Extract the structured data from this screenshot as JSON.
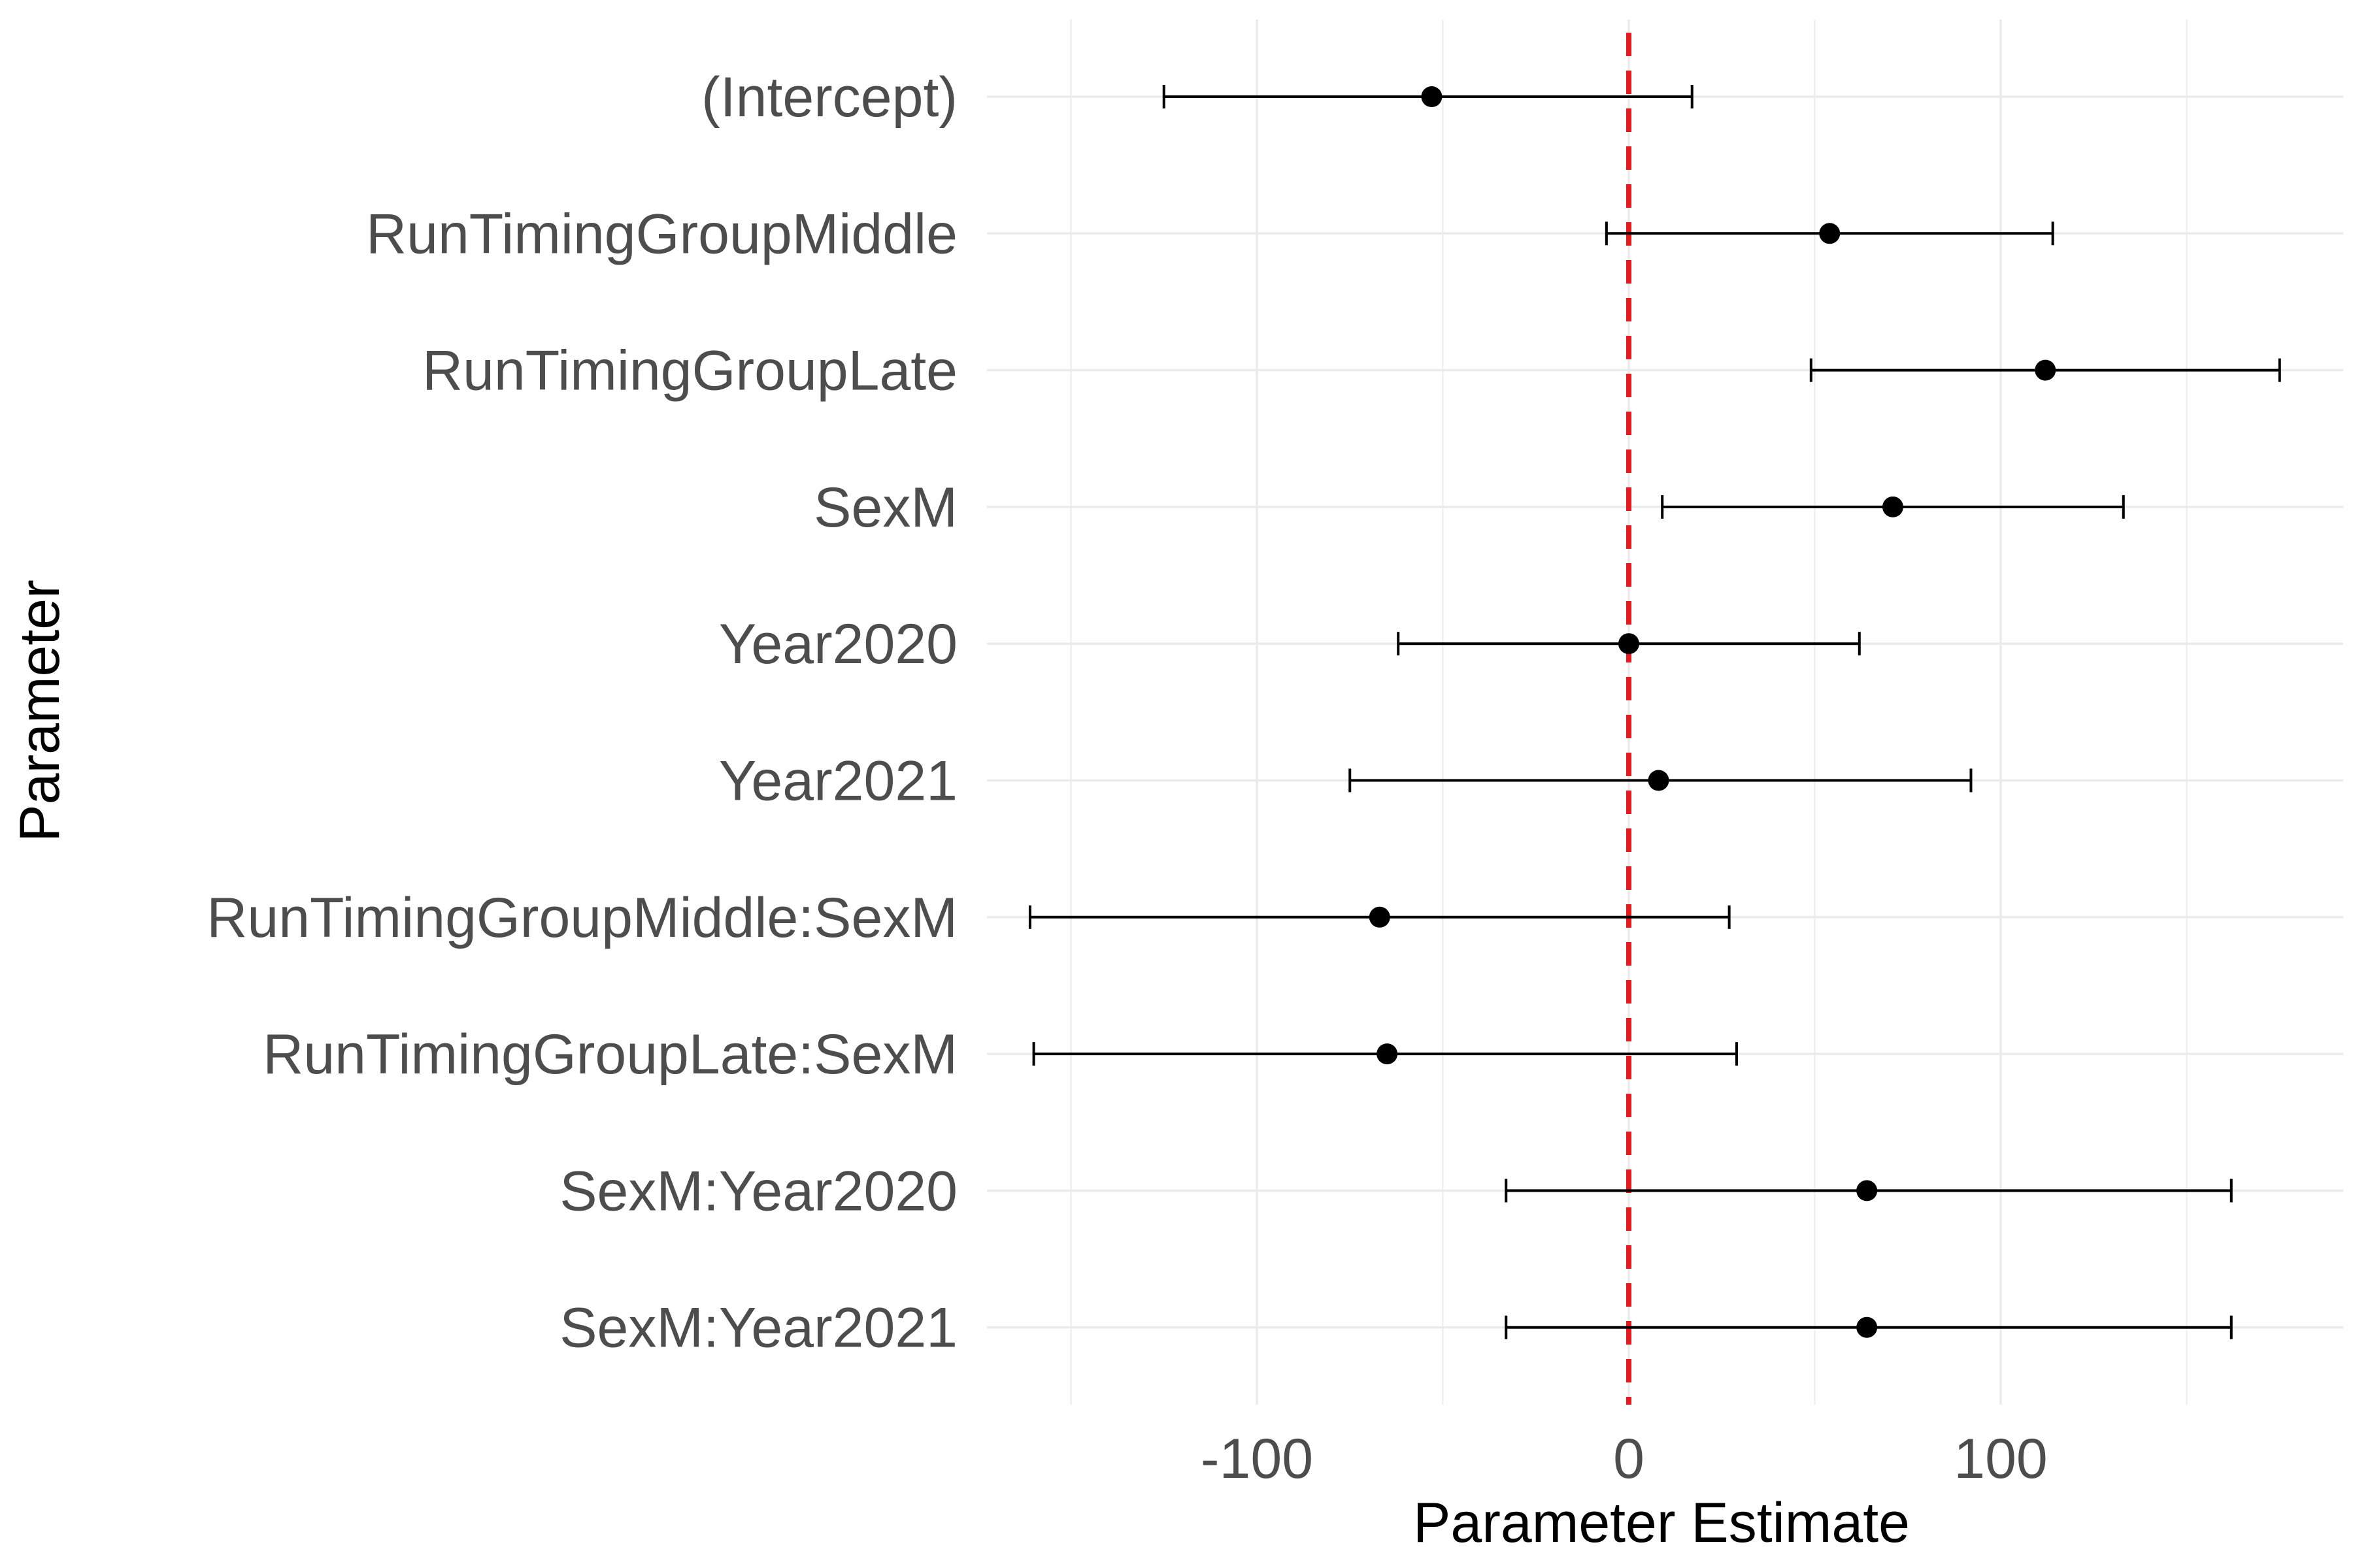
{
  "chart_data": {
    "type": "scatter",
    "subtype": "coefficient-plot-with-error-bars",
    "xlabel": "Parameter Estimate",
    "ylabel": "Parameter",
    "xlim": [
      -170,
      178
    ],
    "x_ticks": [
      -100,
      0,
      100
    ],
    "x_tick_labels": [
      "-100",
      "0",
      "100"
    ],
    "reference_line": {
      "x": 0,
      "color": "#e41a1c",
      "style": "dashed"
    },
    "grid": true,
    "categories": [
      "(Intercept)",
      "RunTimingGroupMiddle",
      "RunTimingGroupLate",
      "SexM",
      "Year2020",
      "Year2021",
      "RunTimingGroupMiddle:SexM",
      "RunTimingGroupLate:SexM",
      "SexM:Year2020",
      "SexM:Year2021"
    ],
    "estimates": [
      -53,
      54,
      112,
      71,
      0,
      8,
      -67,
      -65,
      64,
      64
    ],
    "lower": [
      -125,
      -6,
      49,
      9,
      -62,
      -75,
      -161,
      -160,
      -33,
      -33
    ],
    "upper": [
      17,
      114,
      175,
      133,
      62,
      92,
      27,
      29,
      162,
      162
    ]
  },
  "colors": {
    "point": "#000000",
    "errorbar": "#000000",
    "reference": "#e41a1c",
    "grid": "#ebebeb",
    "tick_text": "#4d4d4d"
  }
}
